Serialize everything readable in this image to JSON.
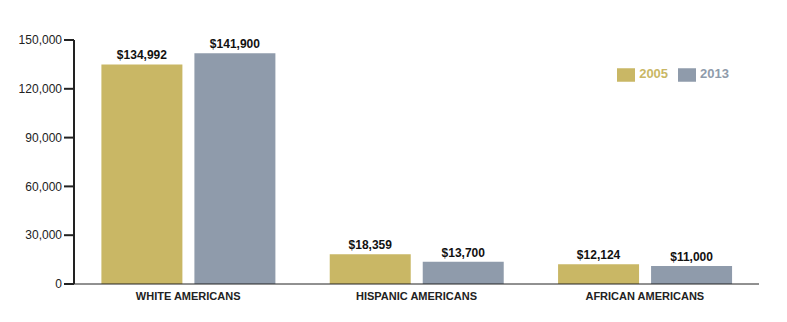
{
  "chart_data": {
    "type": "bar",
    "categories": [
      "WHITE AMERICANS",
      "HISPANIC AMERICANS",
      "AFRICAN AMERICANS"
    ],
    "series": [
      {
        "name": "2005",
        "color": "#c9b765",
        "values": [
          134992,
          18359,
          12124
        ],
        "value_labels": [
          "$134,992",
          "$18,359",
          "$12,124"
        ]
      },
      {
        "name": "2013",
        "color": "#8f9bab",
        "values": [
          141900,
          13700,
          11000
        ],
        "value_labels": [
          "$141,900",
          "$13,700",
          "$11,000"
        ]
      }
    ],
    "ylim": [
      0,
      150000
    ],
    "yticks": [
      0,
      {
        "value": 30000,
        "label": "30,000"
      },
      {
        "value": 60000,
        "label": "60,000"
      },
      {
        "value": 90000,
        "label": "90,000"
      },
      {
        "value": 120000,
        "label": "120,000"
      },
      {
        "value": 150000,
        "label": "150,000"
      }
    ],
    "grid": false,
    "legend": "top-right",
    "data_labels": true
  }
}
